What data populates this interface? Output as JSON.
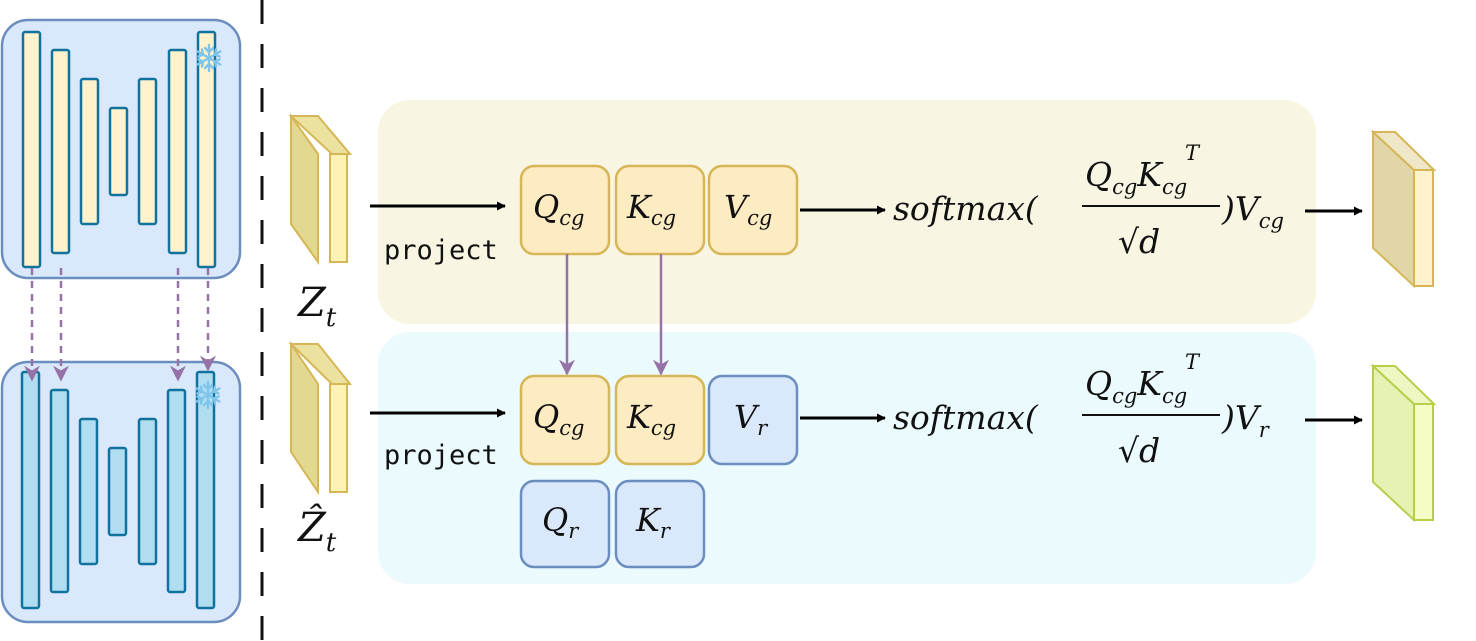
{
  "labels": {
    "project_top": "project",
    "project_bottom": "project",
    "z_t_main": "Z",
    "z_t_sub": "t",
    "zhat_t_main": "Ẑ",
    "zhat_t_sub": "t"
  },
  "top_row": {
    "boxes": [
      {
        "main": "Q",
        "sub": "cg"
      },
      {
        "main": "K",
        "sub": "cg"
      },
      {
        "main": "V",
        "sub": "cg"
      }
    ],
    "formula": {
      "func": "softmax(",
      "num_q": "Q",
      "num_q_sub": "cg",
      "num_k": "K",
      "num_k_sub": "cg",
      "num_k_sup": "T",
      "den": "√d",
      "tail": ")V",
      "tail_sub": "cg"
    }
  },
  "bottom_row": {
    "boxes": [
      {
        "main": "Q",
        "sub": "cg"
      },
      {
        "main": "K",
        "sub": "cg"
      },
      {
        "main": "V",
        "sub": "r"
      },
      {
        "main": "Q",
        "sub": "r"
      },
      {
        "main": "K",
        "sub": "r"
      }
    ],
    "formula": {
      "func": "softmax(",
      "num_q": "Q",
      "num_q_sub": "cg",
      "num_k": "K",
      "num_k_sub": "cg",
      "num_k_sup": "T",
      "den": "√d",
      "tail": ")V",
      "tail_sub": "r"
    }
  },
  "icons": {
    "frozen_top": "snowflake-icon",
    "frozen_bottom": "snowflake-icon"
  },
  "colors": {
    "panel_top_bg": "#f8f6e2",
    "panel_bottom_bg": "#eafafd",
    "box_yellow_fill": "#fdebc2",
    "box_yellow_stroke": "#d6b656",
    "box_blue_fill": "#dae8fc",
    "box_blue_stroke": "#6c8ebf",
    "unet_bg": "#dae8fc",
    "unet_border": "#6c8ebf",
    "bar_yellow": "#fff2cc",
    "bar_blue": "#b1ddf0",
    "bar_stroke": "#10739e",
    "purple_arrow": "#9673a6",
    "feature_top_out": "#eee8c8",
    "feature_bottom_out": "#f3fbc8"
  }
}
